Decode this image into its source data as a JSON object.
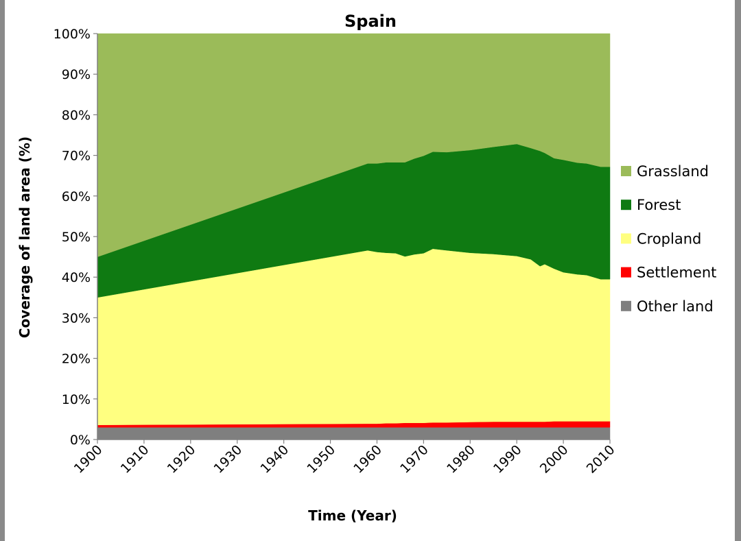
{
  "chart_data": {
    "type": "area",
    "stacked": true,
    "percent": true,
    "title": "Spain",
    "xlabel": "Time (Year)",
    "ylabel": "Coverage of land area (%)",
    "xlim": [
      1900,
      2010
    ],
    "ylim": [
      0,
      100
    ],
    "x_ticks": [
      "1900",
      "1910",
      "1920",
      "1930",
      "1940",
      "1950",
      "1960",
      "1970",
      "1980",
      "1990",
      "2000",
      "2010"
    ],
    "y_ticks": [
      "0%",
      "10%",
      "20%",
      "30%",
      "40%",
      "50%",
      "60%",
      "70%",
      "80%",
      "90%",
      "100%"
    ],
    "grid": false,
    "legend_position": "right",
    "x": [
      1900,
      1958,
      1960,
      1962,
      1964,
      1966,
      1968,
      1970,
      1972,
      1975,
      1980,
      1985,
      1990,
      1993,
      1995,
      1996,
      1998,
      2000,
      2003,
      2005,
      2008,
      2010
    ],
    "series": [
      {
        "name": "Other land",
        "color": "#7f7f7f",
        "values": [
          3,
          3,
          3,
          3,
          3,
          3,
          3,
          3,
          3,
          3,
          3,
          3,
          3,
          3,
          3,
          3,
          3,
          3,
          3,
          3,
          3,
          3
        ]
      },
      {
        "name": "Settlement",
        "color": "#ff0000",
        "values": [
          0.6,
          0.9,
          0.9,
          1.0,
          1.0,
          1.1,
          1.1,
          1.1,
          1.2,
          1.2,
          1.3,
          1.4,
          1.4,
          1.4,
          1.4,
          1.4,
          1.5,
          1.5,
          1.5,
          1.5,
          1.5,
          1.5
        ]
      },
      {
        "name": "Cropland",
        "color": "#ffff80",
        "values": [
          31.4,
          42.7,
          42.3,
          42.0,
          41.9,
          41.0,
          41.5,
          41.8,
          42.8,
          42.4,
          41.7,
          41.3,
          40.8,
          40.0,
          38.3,
          38.8,
          37.6,
          36.7,
          36.2,
          36.0,
          35.0,
          35.0
        ]
      },
      {
        "name": "Forest",
        "color": "#0f7a12",
        "values": [
          10,
          21.4,
          21.8,
          22.3,
          22.4,
          23.2,
          23.6,
          24.0,
          23.9,
          24.2,
          25.3,
          26.4,
          27.6,
          27.4,
          28.4,
          27.4,
          27.2,
          27.7,
          27.5,
          27.5,
          27.7,
          27.7
        ]
      },
      {
        "name": "Grassland",
        "color": "#9bbb59",
        "values": [
          55,
          32,
          32,
          31.7,
          31.7,
          31.7,
          30.8,
          30.1,
          29.1,
          29.2,
          28.7,
          27.9,
          27.2,
          28.2,
          28.9,
          29.4,
          30.7,
          31.1,
          31.8,
          32.0,
          32.8,
          32.8
        ]
      }
    ],
    "legend_order": [
      "Grassland",
      "Forest",
      "Cropland",
      "Settlement",
      "Other land"
    ]
  }
}
